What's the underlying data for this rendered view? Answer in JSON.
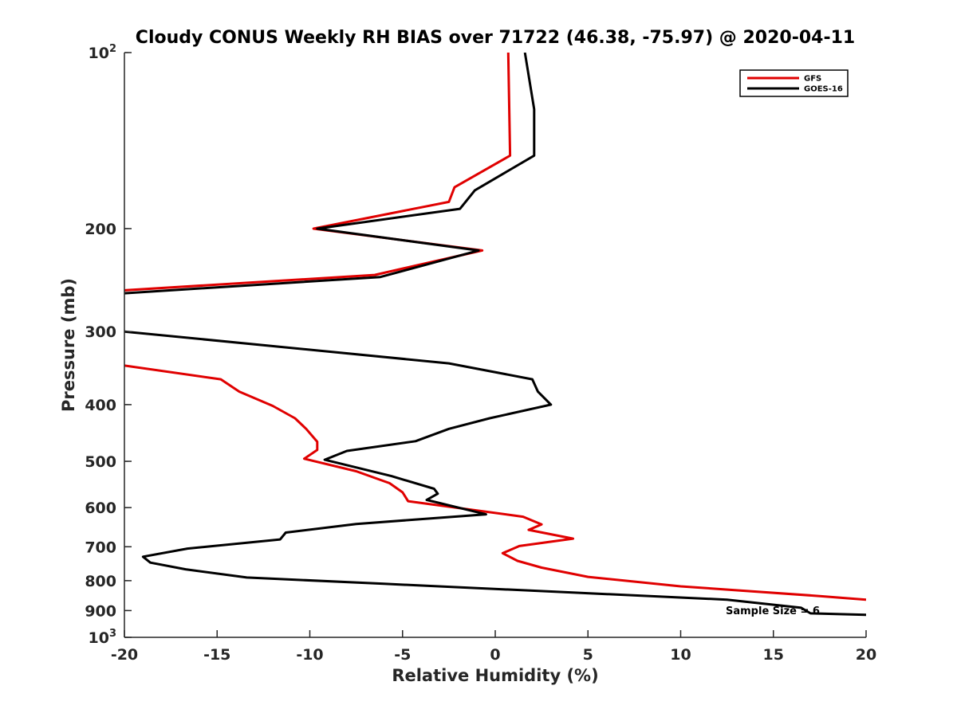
{
  "chart_data": {
    "type": "line",
    "title": "Cloudy CONUS Weekly RH BIAS over 71722 (46.38, -75.97) @ 2020-04-11",
    "xlabel": "Relative Humidity (%)",
    "ylabel": "Pressure (mb)",
    "xlim": [
      -20,
      20
    ],
    "ylim": [
      100,
      1000
    ],
    "yscale": "log",
    "y_direction": "reverse",
    "xticks": [
      -20,
      -15,
      -10,
      -5,
      0,
      5,
      10,
      15,
      20
    ],
    "yticks": [
      {
        "value": 100,
        "label": "10",
        "sup": "2"
      },
      {
        "value": 200,
        "label": "200"
      },
      {
        "value": 300,
        "label": "300"
      },
      {
        "value": 400,
        "label": "400"
      },
      {
        "value": 500,
        "label": "500"
      },
      {
        "value": 600,
        "label": "600"
      },
      {
        "value": 700,
        "label": "700"
      },
      {
        "value": 800,
        "label": "800"
      },
      {
        "value": 900,
        "label": "900"
      },
      {
        "value": 1000,
        "label": "10",
        "sup": "3"
      }
    ],
    "legend_position": "top-right",
    "annotation": "Sample Size = 6",
    "series": [
      {
        "name": "GFS",
        "color": "#e00000",
        "points": [
          [
            0.7,
            100
          ],
          [
            0.8,
            150
          ],
          [
            -2.2,
            170
          ],
          [
            -2.5,
            180
          ],
          [
            -9.8,
            200
          ],
          [
            -0.7,
            218
          ],
          [
            -6.5,
            240
          ],
          [
            -20,
            255
          ],
          [
            null,
            null
          ],
          [
            -20,
            343
          ],
          [
            -14.8,
            362
          ],
          [
            -13.8,
            380
          ],
          [
            -12,
            402
          ],
          [
            -10.8,
            422
          ],
          [
            -10.2,
            440
          ],
          [
            -9.6,
            463
          ],
          [
            -9.6,
            478
          ],
          [
            -10.3,
            495
          ],
          [
            -7.5,
            520
          ],
          [
            -5.7,
            545
          ],
          [
            -5,
            565
          ],
          [
            -4.7,
            585
          ],
          [
            1.5,
            622
          ],
          [
            2.5,
            641
          ],
          [
            1.8,
            655
          ],
          [
            4.2,
            678
          ],
          [
            1.3,
            698
          ],
          [
            0.4,
            718
          ],
          [
            1.2,
            740
          ],
          [
            2.5,
            760
          ],
          [
            5,
            788
          ],
          [
            10,
            818
          ],
          [
            17.5,
            850
          ],
          [
            20,
            862
          ]
        ]
      },
      {
        "name": "GOES-16",
        "color": "#000000",
        "points": [
          [
            1.6,
            100
          ],
          [
            2.1,
            125
          ],
          [
            2.1,
            150
          ],
          [
            -1.1,
            172
          ],
          [
            -1.9,
            185
          ],
          [
            -9.6,
            200
          ],
          [
            -0.9,
            218
          ],
          [
            -6.2,
            242
          ],
          [
            -20,
            258
          ],
          [
            null,
            null
          ],
          [
            -20,
            300
          ],
          [
            -2.5,
            340
          ],
          [
            2,
            362
          ],
          [
            2.3,
            380
          ],
          [
            3,
            400
          ],
          [
            -0.3,
            422
          ],
          [
            -2.5,
            440
          ],
          [
            -4.3,
            462
          ],
          [
            -8,
            480
          ],
          [
            -9.2,
            497
          ],
          [
            -5.6,
            530
          ],
          [
            -3.3,
            557
          ],
          [
            -3.1,
            568
          ],
          [
            -3.7,
            582
          ],
          [
            -0.5,
            616
          ],
          [
            -7.5,
            640
          ],
          [
            -11.3,
            662
          ],
          [
            -11.6,
            680
          ],
          [
            -16.6,
            705
          ],
          [
            -19,
            728
          ],
          [
            -18.6,
            745
          ],
          [
            -16.7,
            765
          ],
          [
            -13.4,
            790
          ],
          [
            -6,
            810
          ],
          [
            2,
            832
          ],
          [
            12.5,
            862
          ],
          [
            16.5,
            890
          ],
          [
            17,
            910
          ],
          [
            20,
            915
          ]
        ]
      }
    ]
  }
}
